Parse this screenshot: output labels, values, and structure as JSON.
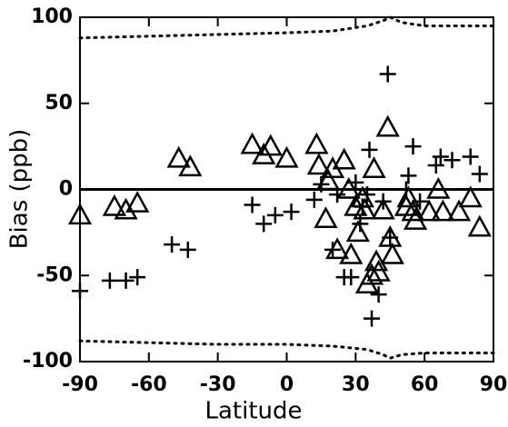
{
  "chart_data": {
    "type": "scatter",
    "x_label": "Latitude",
    "y_label": "Bias (ppb)",
    "xlim": [
      -90,
      90
    ],
    "xticks": [
      -90,
      -60,
      -30,
      0,
      30,
      60,
      90
    ],
    "ylim": [
      -100,
      100
    ],
    "yticks": [
      -100,
      -50,
      0,
      50,
      100
    ],
    "reference_line": 0,
    "series": [
      {
        "marker": "triangle",
        "color": "#000000",
        "x": [
          -90,
          -75,
          -70,
          -65,
          -47,
          -42,
          -15,
          -10,
          -7,
          0,
          13,
          14,
          18,
          20,
          17,
          22,
          25,
          27,
          28,
          30,
          31,
          33,
          34,
          35,
          37,
          38,
          39,
          40,
          42,
          44,
          45,
          46,
          52,
          53,
          55,
          56,
          62,
          66,
          68,
          75,
          80,
          84
        ],
        "values": [
          -15,
          -10,
          -12,
          -8,
          18,
          13,
          26,
          20,
          25,
          18,
          26,
          14,
          5,
          12,
          -17,
          -35,
          17,
          0,
          -38,
          -10,
          -25,
          -5,
          -12,
          -55,
          -50,
          12,
          -42,
          -48,
          -12,
          36,
          -28,
          -38,
          -10,
          -5,
          -13,
          -18,
          -13,
          0,
          -13,
          -13,
          -5,
          -22
        ]
      },
      {
        "marker": "plus",
        "color": "#000000",
        "x": [
          -90,
          -77,
          -70,
          -65,
          -50,
          -43,
          -15,
          -10,
          -5,
          2,
          12,
          15,
          20,
          22,
          25,
          28,
          30,
          32,
          33,
          35,
          36,
          37,
          40,
          42,
          44,
          45,
          52,
          53,
          55,
          58,
          65,
          67,
          72,
          80,
          84
        ],
        "values": [
          -59,
          -53,
          -53,
          -51,
          -32,
          -35,
          -9,
          -20,
          -15,
          -13,
          -6,
          3,
          -35,
          -3,
          -51,
          -51,
          4,
          -20,
          -10,
          -3,
          23,
          -75,
          -61,
          -7,
          67,
          -28,
          0,
          8,
          25,
          -7,
          14,
          19,
          17,
          19,
          9
        ]
      },
      {
        "marker": "dotted-line",
        "color": "#000000",
        "x": [
          -90,
          -60,
          -30,
          0,
          20,
          35,
          42,
          45,
          50,
          60,
          90
        ],
        "values": [
          88,
          89,
          90,
          91,
          92,
          95,
          98,
          100,
          97,
          95,
          95
        ]
      },
      {
        "marker": "dotted-line",
        "color": "#000000",
        "x": [
          -90,
          -60,
          -30,
          0,
          20,
          35,
          42,
          45,
          50,
          60,
          90
        ],
        "values": [
          -88,
          -89,
          -90,
          -90,
          -91,
          -93,
          -96,
          -98,
          -96,
          -95,
          -95
        ]
      }
    ]
  }
}
